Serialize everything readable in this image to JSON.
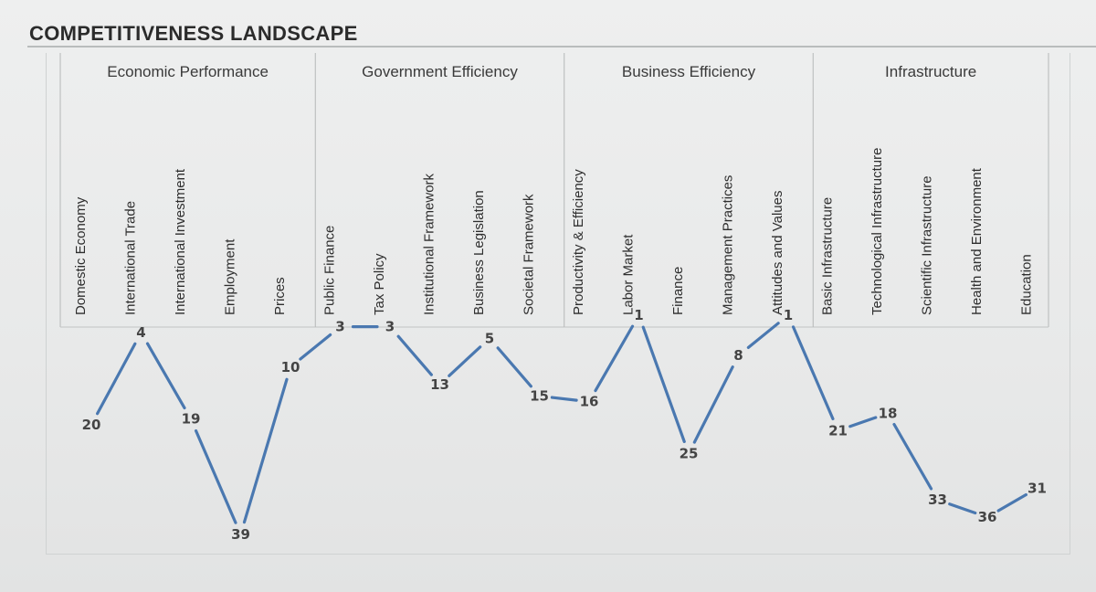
{
  "title": "COMPETITIVENESS LANDSCAPE",
  "chart_data": {
    "type": "line",
    "groups": [
      {
        "name": "Economic Performance",
        "categories": [
          "Domestic Economy",
          "International Trade",
          "International Investment",
          "Employment",
          "Prices"
        ]
      },
      {
        "name": "Government Efficiency",
        "categories": [
          "Public Finance",
          "Tax Policy",
          "Institutional Framework",
          "Business Legislation",
          "Societal Framework"
        ]
      },
      {
        "name": "Business Efficiency",
        "categories": [
          "Productivity & Efficiency",
          "Labor Market",
          "Finance",
          "Management Practices",
          "Attitudes and Values"
        ]
      },
      {
        "name": "Infrastructure",
        "categories": [
          "Basic Infrastructure",
          "Technological Infrastructure",
          "Scientific Infrastructure",
          "Health and Environment",
          "Education"
        ]
      }
    ],
    "categories": [
      "Domestic Economy",
      "International Trade",
      "International Investment",
      "Employment",
      "Prices",
      "Public Finance",
      "Tax Policy",
      "Institutional Framework",
      "Business Legislation",
      "Societal Framework",
      "Productivity & Efficiency",
      "Labor Market",
      "Finance",
      "Management Practices",
      "Attitudes and Values",
      "Basic Infrastructure",
      "Technological Infrastructure",
      "Scientific Infrastructure",
      "Health and Environment",
      "Education"
    ],
    "values": [
      20,
      4,
      19,
      39,
      10,
      3,
      3,
      13,
      5,
      15,
      16,
      1,
      25,
      8,
      1,
      21,
      18,
      33,
      36,
      31
    ],
    "value_labels": [
      "20",
      "4",
      "19",
      "39",
      "10",
      "3",
      "3",
      "13",
      "5",
      "15",
      "16",
      "1",
      "25",
      "8",
      "1",
      "21",
      "18",
      "33",
      "36",
      "31"
    ],
    "y_axis": "rank (lower is better, shown higher)",
    "line_color": "#4a78b0",
    "grid": false
  }
}
